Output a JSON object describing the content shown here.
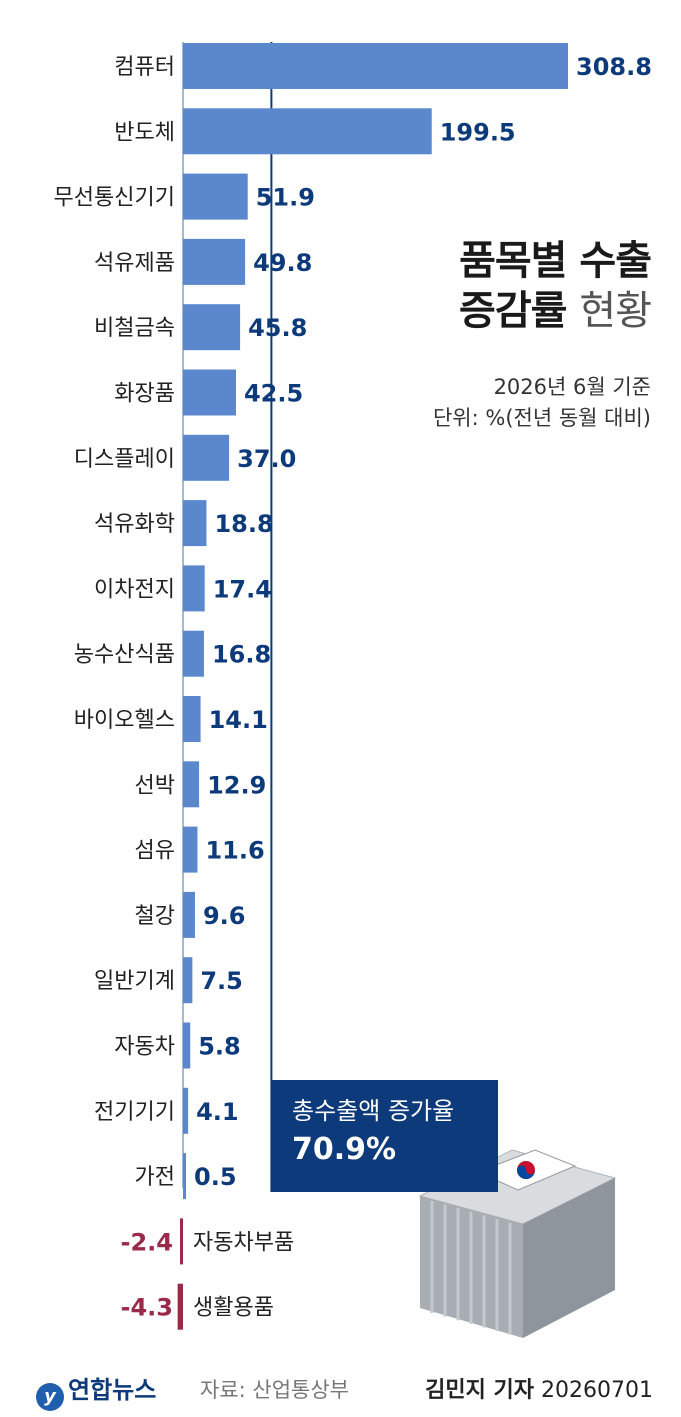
{
  "title": {
    "line1": "품목별 수출",
    "line2_bold": "증감률",
    "line2_light": "현황"
  },
  "subtitle": {
    "date": "2026년 6월 기준",
    "unit": "단위: %(전년 동월 대비)"
  },
  "callout": {
    "label": "총수출액 증가율",
    "value": "70.9%"
  },
  "footer": {
    "logo": "연합뉴스",
    "source": "자료: 산업통상부",
    "reporter": "김민지 기자",
    "date": "20260701"
  },
  "colors": {
    "bar": "#5b87cc",
    "negative_label": "#9b2a4a",
    "value_label": "#0d3a7a",
    "reference_line": "#0d3a7a",
    "callout_bg": "#0d3a7a"
  },
  "chart_data": {
    "type": "bar",
    "orientation": "horizontal",
    "categories": [
      "컴퓨터",
      "반도체",
      "무선통신기기",
      "석유제품",
      "비철금속",
      "화장품",
      "디스플레이",
      "석유화학",
      "이차전지",
      "농수산식품",
      "바이오헬스",
      "선박",
      "섬유",
      "철강",
      "일반기계",
      "자동차",
      "전기기기",
      "가전",
      "자동차부품",
      "생활용품"
    ],
    "values": [
      308.8,
      199.5,
      51.9,
      49.8,
      45.8,
      42.5,
      37.0,
      18.8,
      17.4,
      16.8,
      14.1,
      12.9,
      11.6,
      9.6,
      7.5,
      5.8,
      4.1,
      0.5,
      -2.4,
      -4.3
    ],
    "value_labels": [
      "308.8",
      "199.5",
      "51.9",
      "49.8",
      "45.8",
      "42.5",
      "37.0",
      "18.8",
      "17.4",
      "16.8",
      "14.1",
      "12.9",
      "11.6",
      "9.6",
      "7.5",
      "5.8",
      "4.1",
      "0.5",
      "-2.4",
      "-4.3"
    ],
    "reference_value": 70.9,
    "xlim": [
      -4.3,
      308.8
    ],
    "grid": false,
    "legend": "none"
  }
}
